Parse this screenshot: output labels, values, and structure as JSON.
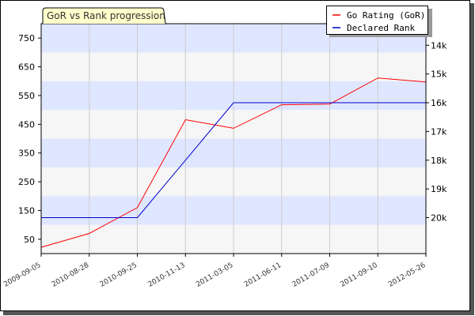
{
  "chart_data": {
    "type": "line",
    "title": "GoR vs Rank progression",
    "x": [
      "2009-09-05",
      "2010-08-28",
      "2010-09-25",
      "2010-11-13",
      "2011-03-05",
      "2011-06-11",
      "2011-07-09",
      "2011-09-10",
      "2012-05-26"
    ],
    "series": [
      {
        "name": "Go Rating (GoR)",
        "axis": "left",
        "color": "#ff0000",
        "values": [
          22,
          70,
          160,
          466,
          436,
          518,
          520,
          611,
          597
        ]
      },
      {
        "name": "Declared Rank",
        "axis": "right",
        "color": "#0000cc",
        "values_label": [
          "20k",
          "20k",
          "20k",
          "18k",
          "16k",
          "16k",
          "16k",
          "16k",
          "16k"
        ],
        "values": [
          20,
          20,
          20,
          18,
          16,
          16,
          16,
          16,
          16
        ]
      }
    ],
    "ylim_left": [
      0,
      800
    ],
    "yticks_left": [
      "750",
      "650",
      "550",
      "450",
      "350",
      "250",
      "150",
      "50"
    ],
    "yticks_left_values": [
      750,
      650,
      550,
      450,
      350,
      250,
      150,
      50
    ],
    "ylim_right_rank": [
      21.25,
      13.25
    ],
    "yticks_right": [
      "14k",
      "15k",
      "16k",
      "17k",
      "18k",
      "19k",
      "20k"
    ],
    "yticks_right_values": [
      14,
      15,
      16,
      17,
      18,
      19,
      20
    ],
    "right_axis_inverted": true,
    "grid": true,
    "legend_position": "top-right",
    "colors": {
      "band_light": "#f6f6f6",
      "band_blue": "#dfe6ff",
      "gor": "#ff0000",
      "rank": "#0000cc",
      "title_bg": "#ffffcc",
      "frame": "#000000"
    }
  }
}
